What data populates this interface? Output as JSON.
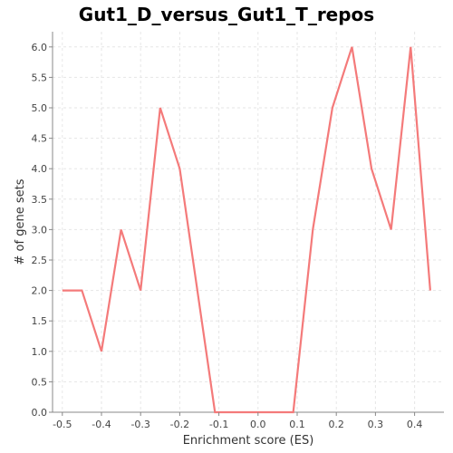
{
  "chart_data": {
    "type": "line",
    "title": "Gut1_D_versus_Gut1_T_repos",
    "xlabel": "Enrichment score (ES)",
    "ylabel": "# of gene sets",
    "xlim": [
      -0.525,
      0.475
    ],
    "ylim": [
      0,
      6.25
    ],
    "xticks": [
      -0.5,
      -0.4,
      -0.3,
      -0.2,
      -0.1,
      0.0,
      0.1,
      0.2,
      0.3,
      0.4
    ],
    "xtick_labels": [
      "-0.5",
      "-0.4",
      "-0.3",
      "-0.2",
      "-0.1",
      "0.0",
      "0.1",
      "0.2",
      "0.3",
      "0.4"
    ],
    "yticks": [
      0,
      0.5,
      1,
      1.5,
      2,
      2.5,
      3,
      3.5,
      4,
      4.5,
      5,
      5.5,
      6
    ],
    "ytick_labels": [
      "0.0",
      "0.5",
      "1.0",
      "1.5",
      "2.0",
      "2.5",
      "3.0",
      "3.5",
      "4.0",
      "4.5",
      "5.0",
      "5.5",
      "6.0"
    ],
    "grid": true,
    "series": [
      {
        "color": "#f47a7a",
        "x": [
          -0.5,
          -0.45,
          -0.4,
          -0.35,
          -0.3,
          -0.25,
          -0.2,
          -0.11,
          0.09,
          0.14,
          0.19,
          0.24,
          0.29,
          0.34,
          0.39,
          0.44
        ],
        "y": [
          2,
          2,
          1,
          3,
          2,
          5,
          4,
          0,
          0,
          3,
          5,
          6,
          4,
          3,
          6,
          2
        ]
      }
    ]
  }
}
